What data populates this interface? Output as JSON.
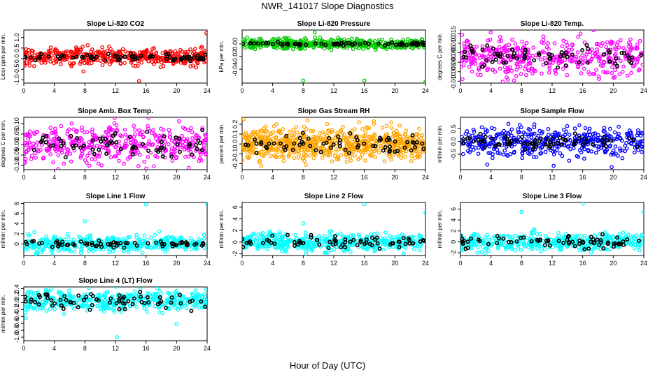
{
  "figure": {
    "title": "NWR_141017  Slope Diagnostics",
    "xlabel": "Hour of Day (UTC)"
  },
  "chart_data": [
    {
      "type": "scatter",
      "title": "Slope Li-820 CO2",
      "ylabel": "Licor ppm per min.",
      "color": "#ff0000",
      "xlim": [
        0,
        24
      ],
      "xticks": [
        0,
        4,
        8,
        12,
        16,
        20,
        24
      ],
      "ylim": [
        -1.15,
        1.35
      ],
      "yticks": [
        -1.0,
        -0.5,
        0.0,
        0.5,
        1.0
      ],
      "ytick_labels": [
        "-1.0",
        "-0.5",
        "0.0",
        "0.5",
        "1.0"
      ],
      "grid": false,
      "series": [
        {
          "role": "points",
          "center": 0.1,
          "spread": 0.2,
          "n": 420,
          "outliers": [
            [
              23.9,
              1.2
            ],
            [
              15.1,
              -1.05
            ],
            [
              7.8,
              -0.6
            ]
          ]
        },
        {
          "role": "overlay",
          "color": "#000000",
          "center": 0.05,
          "spread": 0.08,
          "n": 70
        }
      ]
    },
    {
      "type": "scatter",
      "title": "Slope Li-820 Pressure",
      "ylabel": "kPa per min.",
      "color": "#00cc00",
      "xlim": [
        0,
        24
      ],
      "xticks": [
        0,
        4,
        8,
        12,
        16,
        20,
        24
      ],
      "ylim": [
        -0.062,
        0.022
      ],
      "yticks": [
        -0.04,
        -0.02,
        0.0
      ],
      "ytick_labels": [
        "-0.04",
        "-0.02",
        "0.00"
      ],
      "grid": false,
      "series": [
        {
          "role": "points",
          "center": 0.0,
          "spread": 0.004,
          "n": 420,
          "outliers": [
            [
              8,
              -0.058
            ],
            [
              16,
              -0.058
            ],
            [
              24,
              -0.06
            ],
            [
              9.5,
              0.018
            ]
          ]
        },
        {
          "role": "overlay",
          "color": "#000000",
          "center": 0.0,
          "spread": 0.0015,
          "n": 70
        }
      ]
    },
    {
      "type": "scatter",
      "title": "Slope Li-820 Temp.",
      "ylabel": "degrees C per min.",
      "color": "#ff00ff",
      "xlim": [
        0,
        24
      ],
      "xticks": [
        0,
        4,
        8,
        12,
        16,
        20,
        24
      ],
      "ylim": [
        -0.011,
        0.017
      ],
      "yticks": [
        -0.01,
        -0.005,
        0.0,
        0.005,
        0.01,
        0.015
      ],
      "ytick_labels": [
        "-0.010",
        "-0.005",
        "0.000",
        "0.005",
        "0.010",
        "0.015"
      ],
      "grid": false,
      "series": [
        {
          "role": "points",
          "center": 0.003,
          "spread": 0.005,
          "n": 420,
          "outliers": []
        },
        {
          "role": "overlay",
          "color": "#000000",
          "center": 0.003,
          "spread": 0.003,
          "n": 70
        }
      ]
    },
    {
      "type": "scatter",
      "title": "Slope Amb. Box Temp.",
      "ylabel": "degrees C per min.",
      "color": "#ff00ff",
      "xlim": [
        0,
        24
      ],
      "xticks": [
        0,
        4,
        8,
        12,
        16,
        20,
        24
      ],
      "ylim": [
        -0.12,
        0.13
      ],
      "yticks": [
        -0.1,
        -0.05,
        0.0,
        0.05,
        0.1
      ],
      "ytick_labels": [
        "-0.10",
        "-0.05",
        "0.00",
        "0.05",
        "0.10"
      ],
      "grid": false,
      "series": [
        {
          "role": "points",
          "center": 0.0,
          "spread": 0.045,
          "n": 420,
          "outliers": []
        },
        {
          "role": "overlay",
          "color": "#000000",
          "center": 0.0,
          "spread": 0.03,
          "n": 70
        }
      ]
    },
    {
      "type": "scatter",
      "title": "Slope Gas Stream RH",
      "ylabel": "percent per min.",
      "color": "#ffa500",
      "xlim": [
        0,
        24
      ],
      "xticks": [
        0,
        4,
        8,
        12,
        16,
        20,
        24
      ],
      "ylim": [
        -0.26,
        0.27
      ],
      "yticks": [
        -0.2,
        -0.1,
        0.0,
        0.1,
        0.2
      ],
      "ytick_labels": [
        "-0.2",
        "-0.1",
        "0.0",
        "0.1",
        "0.2"
      ],
      "grid": false,
      "series": [
        {
          "role": "points",
          "center": 0.0,
          "spread": 0.08,
          "n": 700,
          "outliers": [
            [
              0.2,
              0.25
            ],
            [
              2.5,
              -0.22
            ]
          ]
        },
        {
          "role": "overlay",
          "color": "#000000",
          "center": 0.0,
          "spread": 0.05,
          "n": 70
        }
      ]
    },
    {
      "type": "scatter",
      "title": "Slope Sample Flow",
      "ylabel": "ml/min per min.",
      "color": "#0000ff",
      "xlim": [
        0,
        24
      ],
      "xticks": [
        0,
        4,
        8,
        12,
        16,
        20,
        24
      ],
      "ylim": [
        -1.1,
        0.95
      ],
      "yticks": [
        -0.5,
        0.0,
        0.5
      ],
      "ytick_labels": [
        "-0.5",
        "0.0",
        "0.5"
      ],
      "grid": false,
      "series": [
        {
          "role": "points",
          "center": 0.0,
          "spread": 0.28,
          "n": 420,
          "outliers": [
            [
              19.8,
              -1.0
            ],
            [
              12.2,
              -0.95
            ],
            [
              3.5,
              -0.9
            ]
          ]
        },
        {
          "role": "overlay",
          "color": "#000000",
          "center": 0.0,
          "spread": 0.15,
          "n": 70
        }
      ]
    },
    {
      "type": "scatter",
      "title": "Slope Line 1 Flow",
      "ylabel": "ml/min per min.",
      "color": "#00ffff",
      "xlim": [
        0,
        24
      ],
      "xticks": [
        0,
        4,
        8,
        12,
        16,
        20,
        24
      ],
      "ylim": [
        -2.3,
        8.2
      ],
      "yticks": [
        0,
        2,
        4,
        6,
        8
      ],
      "ytick_labels": [
        "0",
        "2",
        "4",
        "6",
        "8"
      ],
      "grid": false,
      "series": [
        {
          "role": "points",
          "center": 0.0,
          "spread": 0.8,
          "n": 420,
          "outliers": [
            [
              16,
              7.8
            ],
            [
              24,
              7.8
            ],
            [
              8,
              4.5
            ]
          ]
        },
        {
          "role": "overlay",
          "color": "#000000",
          "center": 0.0,
          "spread": 0.3,
          "n": 70
        }
      ]
    },
    {
      "type": "scatter",
      "title": "Slope Line 2 Flow",
      "ylabel": "ml/min per min.",
      "color": "#00ffff",
      "xlim": [
        0,
        24
      ],
      "xticks": [
        0,
        4,
        8,
        12,
        16,
        20,
        24
      ],
      "ylim": [
        -2.3,
        6.8
      ],
      "yticks": [
        -2,
        0,
        2,
        4,
        6
      ],
      "ytick_labels": [
        "-2",
        "0",
        "2",
        "4",
        "6"
      ],
      "grid": false,
      "series": [
        {
          "role": "points",
          "center": 0.0,
          "spread": 0.8,
          "n": 420,
          "outliers": [
            [
              16,
              6.5
            ],
            [
              24,
              5.0
            ],
            [
              8,
              3.2
            ]
          ]
        },
        {
          "role": "overlay",
          "color": "#000000",
          "center": 0.0,
          "spread": 0.5,
          "n": 70
        }
      ]
    },
    {
      "type": "scatter",
      "title": "Slope Line 3 Flow",
      "ylabel": "ml/min per min.",
      "color": "#00ffff",
      "xlim": [
        0,
        24
      ],
      "xticks": [
        0,
        4,
        8,
        12,
        16,
        20,
        24
      ],
      "ylim": [
        -2.5,
        7.2
      ],
      "yticks": [
        -2,
        0,
        2,
        4,
        6
      ],
      "ytick_labels": [
        "-2",
        "0",
        "2",
        "4",
        "6"
      ],
      "grid": false,
      "series": [
        {
          "role": "points",
          "center": 0.0,
          "spread": 0.8,
          "n": 420,
          "outliers": [
            [
              16,
              7.0
            ],
            [
              8,
              5.5
            ],
            [
              24,
              5.5
            ]
          ]
        },
        {
          "role": "overlay",
          "color": "#000000",
          "center": 0.0,
          "spread": 0.6,
          "n": 70
        }
      ]
    },
    {
      "type": "scatter",
      "title": "Slope Line 4 (LT) Flow",
      "ylabel": "ml/min per min.",
      "color": "#00ffff",
      "xlim": [
        0,
        24
      ],
      "xticks": [
        0,
        4,
        8,
        12,
        16,
        20,
        24
      ],
      "ylim": [
        -1.1,
        0.45
      ],
      "yticks": [
        -1.0,
        -0.8,
        -0.6,
        -0.4,
        -0.2,
        0.0,
        0.2,
        0.4
      ],
      "ytick_labels": [
        "-1.0",
        "-0.8",
        "-0.6",
        "-0.4",
        "-0.2",
        "0.0",
        "0.2",
        "0.4"
      ],
      "grid": false,
      "series": [
        {
          "role": "points",
          "center": 0.05,
          "spread": 0.15,
          "n": 420,
          "outliers": [
            [
              12.2,
              -1.0
            ],
            [
              20,
              -0.62
            ],
            [
              0.3,
              -0.45
            ],
            [
              8.5,
              0.42
            ]
          ]
        },
        {
          "role": "overlay",
          "color": "#000000",
          "center": 0.05,
          "spread": 0.12,
          "n": 70
        }
      ]
    }
  ]
}
